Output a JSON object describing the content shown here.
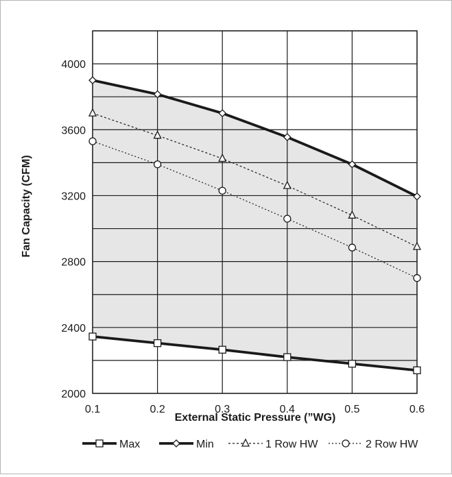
{
  "chart_data": {
    "type": "line",
    "title": "",
    "xlabel": "External Static Pressure (”WG)",
    "ylabel": "Fan Capacity (CFM)",
    "x": [
      0.1,
      0.2,
      0.3,
      0.4,
      0.5,
      0.6
    ],
    "x_tick_labels": [
      "0.1",
      "0.2",
      "0.3",
      "0.4",
      "0.5",
      "0.6"
    ],
    "y_tick_labels": [
      "2000",
      "2400",
      "2800",
      "3200",
      "3600",
      "4000"
    ],
    "xlim": [
      0.1,
      0.6
    ],
    "ylim": [
      2000,
      4200
    ],
    "grid": true,
    "shaded_region": "between Min and Max",
    "legend_position": "bottom",
    "series": [
      {
        "name": "Max",
        "marker": "square",
        "style": "solid-thick",
        "color": "#1a1a1a",
        "values": [
          2345,
          2305,
          2265,
          2220,
          2180,
          2140
        ]
      },
      {
        "name": "Min",
        "marker": "diamond",
        "style": "solid-thick",
        "color": "#1a1a1a",
        "values": [
          3900,
          3815,
          3700,
          3555,
          3390,
          3195
        ]
      },
      {
        "name": "1 Row HW",
        "marker": "triangle",
        "style": "dashed",
        "color": "#1a1a1a",
        "values": [
          3700,
          3565,
          3425,
          3260,
          3080,
          2890
        ]
      },
      {
        "name": "2 Row HW",
        "marker": "circle",
        "style": "dotted",
        "color": "#1a1a1a",
        "values": [
          3530,
          3390,
          3230,
          3060,
          2885,
          2700
        ]
      }
    ],
    "colors": {
      "shade": "#e6e6e6",
      "grid": "#1a1a1a",
      "frame": "#b4b4b4"
    }
  }
}
